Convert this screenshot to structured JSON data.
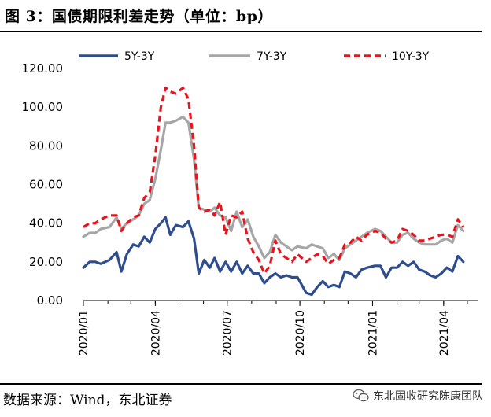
{
  "header": {
    "title": "图 3：国债期限利差走势（单位：bp）"
  },
  "footer": {
    "source": "数据来源：Wind，东北证券",
    "watermark": "东北固收研究陈康团队",
    "watermark_icon": "wechat-icon"
  },
  "chart_data": {
    "type": "line",
    "ylim": [
      0,
      120
    ],
    "yticks": [
      "0.00",
      "20.00",
      "40.00",
      "60.00",
      "80.00",
      "100.00",
      "120.00"
    ],
    "x_range": [
      "2020-01-01",
      "2021-05-15"
    ],
    "xticks": [
      {
        "label": "2020/01",
        "date": "2020-01-01"
      },
      {
        "label": "2020/04",
        "date": "2020-04-01"
      },
      {
        "label": "2020/07",
        "date": "2020-07-01"
      },
      {
        "label": "2020/10",
        "date": "2020-10-01"
      },
      {
        "label": "2021/01",
        "date": "2021-01-01"
      },
      {
        "label": "2021/04",
        "date": "2021-04-01"
      }
    ],
    "legend_position": "top",
    "series": [
      {
        "name": "5Y-3Y",
        "color": "#2E4D8F",
        "dash": "solid",
        "points": [
          [
            "2020-01-01",
            17
          ],
          [
            "2020-01-09",
            20
          ],
          [
            "2020-01-16",
            20
          ],
          [
            "2020-01-23",
            19
          ],
          [
            "2020-02-03",
            21
          ],
          [
            "2020-02-12",
            25
          ],
          [
            "2020-02-18",
            15
          ],
          [
            "2020-02-25",
            24
          ],
          [
            "2020-03-04",
            29
          ],
          [
            "2020-03-11",
            28
          ],
          [
            "2020-03-18",
            33
          ],
          [
            "2020-03-25",
            30
          ],
          [
            "2020-04-01",
            37
          ],
          [
            "2020-04-08",
            40
          ],
          [
            "2020-04-14",
            43
          ],
          [
            "2020-04-20",
            34
          ],
          [
            "2020-04-27",
            39
          ],
          [
            "2020-05-06",
            38
          ],
          [
            "2020-05-13",
            41
          ],
          [
            "2020-05-20",
            32
          ],
          [
            "2020-05-26",
            14
          ],
          [
            "2020-06-02",
            21
          ],
          [
            "2020-06-09",
            17
          ],
          [
            "2020-06-15",
            22
          ],
          [
            "2020-06-22",
            15
          ],
          [
            "2020-06-29",
            20
          ],
          [
            "2020-07-06",
            15
          ],
          [
            "2020-07-13",
            20
          ],
          [
            "2020-07-20",
            14
          ],
          [
            "2020-07-27",
            18
          ],
          [
            "2020-08-03",
            14
          ],
          [
            "2020-08-10",
            14
          ],
          [
            "2020-08-17",
            9
          ],
          [
            "2020-08-24",
            12
          ],
          [
            "2020-08-31",
            14
          ],
          [
            "2020-09-07",
            12
          ],
          [
            "2020-09-14",
            13
          ],
          [
            "2020-09-21",
            12
          ],
          [
            "2020-09-28",
            12
          ],
          [
            "2020-10-09",
            4
          ],
          [
            "2020-10-16",
            3
          ],
          [
            "2020-10-23",
            7
          ],
          [
            "2020-10-30",
            10
          ],
          [
            "2020-11-06",
            7
          ],
          [
            "2020-11-13",
            8
          ],
          [
            "2020-11-20",
            7
          ],
          [
            "2020-11-27",
            15
          ],
          [
            "2020-12-04",
            14
          ],
          [
            "2020-12-11",
            12
          ],
          [
            "2020-12-18",
            16
          ],
          [
            "2020-12-25",
            17
          ],
          [
            "2021-01-04",
            18
          ],
          [
            "2021-01-11",
            18
          ],
          [
            "2021-01-18",
            12
          ],
          [
            "2021-01-25",
            17
          ],
          [
            "2021-02-01",
            17
          ],
          [
            "2021-02-08",
            20
          ],
          [
            "2021-02-15",
            18
          ],
          [
            "2021-02-22",
            20
          ],
          [
            "2021-03-01",
            16
          ],
          [
            "2021-03-08",
            15
          ],
          [
            "2021-03-15",
            13
          ],
          [
            "2021-03-22",
            12
          ],
          [
            "2021-03-29",
            14
          ],
          [
            "2021-04-05",
            17
          ],
          [
            "2021-04-12",
            15
          ],
          [
            "2021-04-19",
            23
          ],
          [
            "2021-04-26",
            20
          ]
        ]
      },
      {
        "name": "7Y-3Y",
        "color": "#A6A6A6",
        "dash": "solid",
        "points": [
          [
            "2020-01-01",
            33
          ],
          [
            "2020-01-09",
            35
          ],
          [
            "2020-01-16",
            35
          ],
          [
            "2020-01-23",
            37
          ],
          [
            "2020-02-03",
            38
          ],
          [
            "2020-02-12",
            43
          ],
          [
            "2020-02-18",
            37
          ],
          [
            "2020-02-25",
            40
          ],
          [
            "2020-03-04",
            42
          ],
          [
            "2020-03-11",
            44
          ],
          [
            "2020-03-18",
            50
          ],
          [
            "2020-03-25",
            52
          ],
          [
            "2020-04-01",
            63
          ],
          [
            "2020-04-08",
            78
          ],
          [
            "2020-04-14",
            92
          ],
          [
            "2020-04-20",
            92
          ],
          [
            "2020-04-27",
            93
          ],
          [
            "2020-05-06",
            95
          ],
          [
            "2020-05-13",
            92
          ],
          [
            "2020-05-20",
            73
          ],
          [
            "2020-05-26",
            48
          ],
          [
            "2020-06-02",
            47
          ],
          [
            "2020-06-09",
            46
          ],
          [
            "2020-06-15",
            48
          ],
          [
            "2020-06-22",
            44
          ],
          [
            "2020-06-29",
            43
          ],
          [
            "2020-07-06",
            36
          ],
          [
            "2020-07-13",
            46
          ],
          [
            "2020-07-20",
            38
          ],
          [
            "2020-07-27",
            42
          ],
          [
            "2020-08-03",
            33
          ],
          [
            "2020-08-10",
            28
          ],
          [
            "2020-08-17",
            22
          ],
          [
            "2020-08-24",
            25
          ],
          [
            "2020-08-31",
            34
          ],
          [
            "2020-09-07",
            30
          ],
          [
            "2020-09-14",
            28
          ],
          [
            "2020-09-21",
            26
          ],
          [
            "2020-09-28",
            28
          ],
          [
            "2020-10-09",
            27
          ],
          [
            "2020-10-16",
            29
          ],
          [
            "2020-10-23",
            28
          ],
          [
            "2020-10-30",
            27
          ],
          [
            "2020-11-06",
            22
          ],
          [
            "2020-11-13",
            24
          ],
          [
            "2020-11-20",
            21
          ],
          [
            "2020-11-27",
            27
          ],
          [
            "2020-12-04",
            29
          ],
          [
            "2020-12-11",
            31
          ],
          [
            "2020-12-18",
            33
          ],
          [
            "2020-12-25",
            35
          ],
          [
            "2021-01-04",
            37
          ],
          [
            "2021-01-11",
            36
          ],
          [
            "2021-01-18",
            33
          ],
          [
            "2021-01-25",
            30
          ],
          [
            "2021-02-01",
            30
          ],
          [
            "2021-02-08",
            34
          ],
          [
            "2021-02-15",
            35
          ],
          [
            "2021-02-22",
            32
          ],
          [
            "2021-03-01",
            30
          ],
          [
            "2021-03-08",
            29
          ],
          [
            "2021-03-15",
            29
          ],
          [
            "2021-03-22",
            29
          ],
          [
            "2021-03-29",
            31
          ],
          [
            "2021-04-05",
            32
          ],
          [
            "2021-04-12",
            30
          ],
          [
            "2021-04-19",
            39
          ],
          [
            "2021-04-26",
            36
          ]
        ]
      },
      {
        "name": "10Y-3Y",
        "color": "#E8141E",
        "dash": "dashed",
        "points": [
          [
            "2020-01-01",
            38
          ],
          [
            "2020-01-09",
            40
          ],
          [
            "2020-01-16",
            40
          ],
          [
            "2020-01-23",
            42
          ],
          [
            "2020-02-03",
            44
          ],
          [
            "2020-02-12",
            44
          ],
          [
            "2020-02-18",
            36
          ],
          [
            "2020-02-25",
            40
          ],
          [
            "2020-03-04",
            43
          ],
          [
            "2020-03-11",
            44
          ],
          [
            "2020-03-18",
            53
          ],
          [
            "2020-03-25",
            56
          ],
          [
            "2020-04-01",
            75
          ],
          [
            "2020-04-08",
            100
          ],
          [
            "2020-04-14",
            110
          ],
          [
            "2020-04-20",
            108
          ],
          [
            "2020-04-27",
            107
          ],
          [
            "2020-05-06",
            110
          ],
          [
            "2020-05-13",
            104
          ],
          [
            "2020-05-20",
            80
          ],
          [
            "2020-05-26",
            48
          ],
          [
            "2020-06-02",
            46
          ],
          [
            "2020-06-09",
            47
          ],
          [
            "2020-06-15",
            44
          ],
          [
            "2020-06-22",
            51
          ],
          [
            "2020-06-29",
            34
          ],
          [
            "2020-07-06",
            44
          ],
          [
            "2020-07-13",
            43
          ],
          [
            "2020-07-20",
            46
          ],
          [
            "2020-07-27",
            32
          ],
          [
            "2020-08-03",
            25
          ],
          [
            "2020-08-10",
            21
          ],
          [
            "2020-08-17",
            14
          ],
          [
            "2020-08-24",
            18
          ],
          [
            "2020-08-31",
            31
          ],
          [
            "2020-09-07",
            24
          ],
          [
            "2020-09-14",
            22
          ],
          [
            "2020-09-21",
            20
          ],
          [
            "2020-09-28",
            24
          ],
          [
            "2020-10-09",
            20
          ],
          [
            "2020-10-16",
            22
          ],
          [
            "2020-10-23",
            24
          ],
          [
            "2020-10-30",
            23
          ],
          [
            "2020-11-06",
            19
          ],
          [
            "2020-11-13",
            21
          ],
          [
            "2020-11-20",
            22
          ],
          [
            "2020-11-27",
            29
          ],
          [
            "2020-12-04",
            30
          ],
          [
            "2020-12-11",
            33
          ],
          [
            "2020-12-18",
            31
          ],
          [
            "2020-12-25",
            34
          ],
          [
            "2021-01-04",
            36
          ],
          [
            "2021-01-11",
            35
          ],
          [
            "2021-01-18",
            32
          ],
          [
            "2021-01-25",
            30
          ],
          [
            "2021-02-01",
            31
          ],
          [
            "2021-02-08",
            37
          ],
          [
            "2021-02-15",
            36
          ],
          [
            "2021-02-22",
            34
          ],
          [
            "2021-03-01",
            31
          ],
          [
            "2021-03-08",
            31
          ],
          [
            "2021-03-15",
            32
          ],
          [
            "2021-03-22",
            33
          ],
          [
            "2021-03-29",
            34
          ],
          [
            "2021-04-05",
            34
          ],
          [
            "2021-04-12",
            33
          ],
          [
            "2021-04-19",
            42
          ],
          [
            "2021-04-26",
            38
          ]
        ]
      }
    ]
  }
}
